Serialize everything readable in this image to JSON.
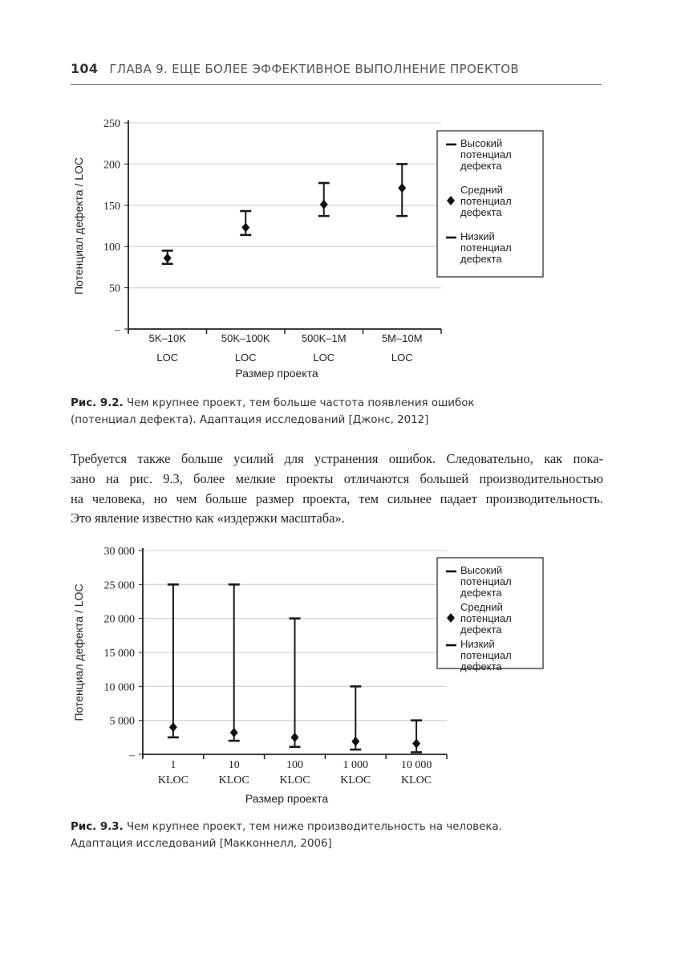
{
  "header": {
    "page_number": "104",
    "title": "ГЛАВА 9. ЕЩЕ БОЛЕЕ ЭФФЕКТИВНОЕ ВЫПОЛНЕНИЕ ПРОЕКТОВ"
  },
  "figure1": {
    "label": "Рис. 9.2.",
    "caption_line1": "Чем крупнее проект, тем больше частота появления ошибок",
    "caption_line2": "(потенциал дефекта). Адаптация исследований [Джонс, 2012]"
  },
  "paragraph": {
    "lines": [
      "Требуется также больше усилий для устранения ошибок. Следовательно, как пока-",
      "зано на рис. 9.3, более мелкие проекты отличаются большей производительностью",
      "на человека, но чем больше размер проекта, тем сильнее падает производительность.",
      "Это явление известно как «издержки масштаба»."
    ]
  },
  "figure2": {
    "label": "Рис. 9.3.",
    "caption_line1": "Чем крупнее проект, тем ниже производительность на человека.",
    "caption_line2": "Адаптация исследований [Макконнелл, 2006]"
  },
  "chart_data": [
    {
      "type": "scatter",
      "title": "",
      "xlabel": "Размер проекта",
      "ylabel": "Потенциал дефекта / LOC",
      "ylim": [
        0,
        250
      ],
      "yticks": [
        0,
        50,
        100,
        150,
        200,
        250
      ],
      "ytick_labels": [
        "–",
        "50",
        "100",
        "150",
        "200",
        "250"
      ],
      "grid": true,
      "legend_position": "right",
      "categories": [
        [
          "5K–10K",
          "LOC"
        ],
        [
          "50K–100K",
          "LOC"
        ],
        [
          "500K–1M",
          "LOC"
        ],
        [
          "5M–10M",
          "LOC"
        ]
      ],
      "series": [
        {
          "name": [
            "Высокий",
            "потенциал",
            "дефекта"
          ],
          "marker": "dash",
          "values": [
            95,
            143,
            177,
            200
          ]
        },
        {
          "name": [
            "Средний",
            "потенциал",
            "дефекта"
          ],
          "marker": "diamond",
          "values": [
            86,
            123,
            151,
            171
          ]
        },
        {
          "name": [
            "Низкий",
            "потенциал",
            "дефекта"
          ],
          "marker": "dash",
          "values": [
            79,
            114,
            137,
            137
          ]
        }
      ]
    },
    {
      "type": "scatter",
      "title": "",
      "xlabel": "Размер проекта",
      "ylabel": "Потенциал дефекта / LOC",
      "ylim": [
        0,
        30000
      ],
      "yticks": [
        0,
        5000,
        10000,
        15000,
        20000,
        25000,
        30000
      ],
      "ytick_labels": [
        "–",
        "5 000",
        "10 000",
        "15 000",
        "20 000",
        "25 000",
        "30 000"
      ],
      "grid": true,
      "legend_position": "right",
      "categories": [
        [
          "1",
          "KLOC"
        ],
        [
          "10",
          "KLOC"
        ],
        [
          "100",
          "KLOC"
        ],
        [
          "1 000",
          "KLOC"
        ],
        [
          "10 000",
          "KLOC"
        ]
      ],
      "series": [
        {
          "name": [
            "Высокий",
            "потенциал",
            "дефекта"
          ],
          "marker": "dash",
          "values": [
            25000,
            25000,
            20000,
            10000,
            5000
          ]
        },
        {
          "name": [
            "Средний",
            "потенциал",
            "дефекта"
          ],
          "marker": "diamond",
          "values": [
            4000,
            3200,
            2500,
            1900,
            1600
          ]
        },
        {
          "name": [
            "Низкий",
            "потенциал",
            "дефекта"
          ],
          "marker": "dash",
          "values": [
            2500,
            2000,
            1100,
            700,
            300
          ]
        }
      ]
    }
  ]
}
